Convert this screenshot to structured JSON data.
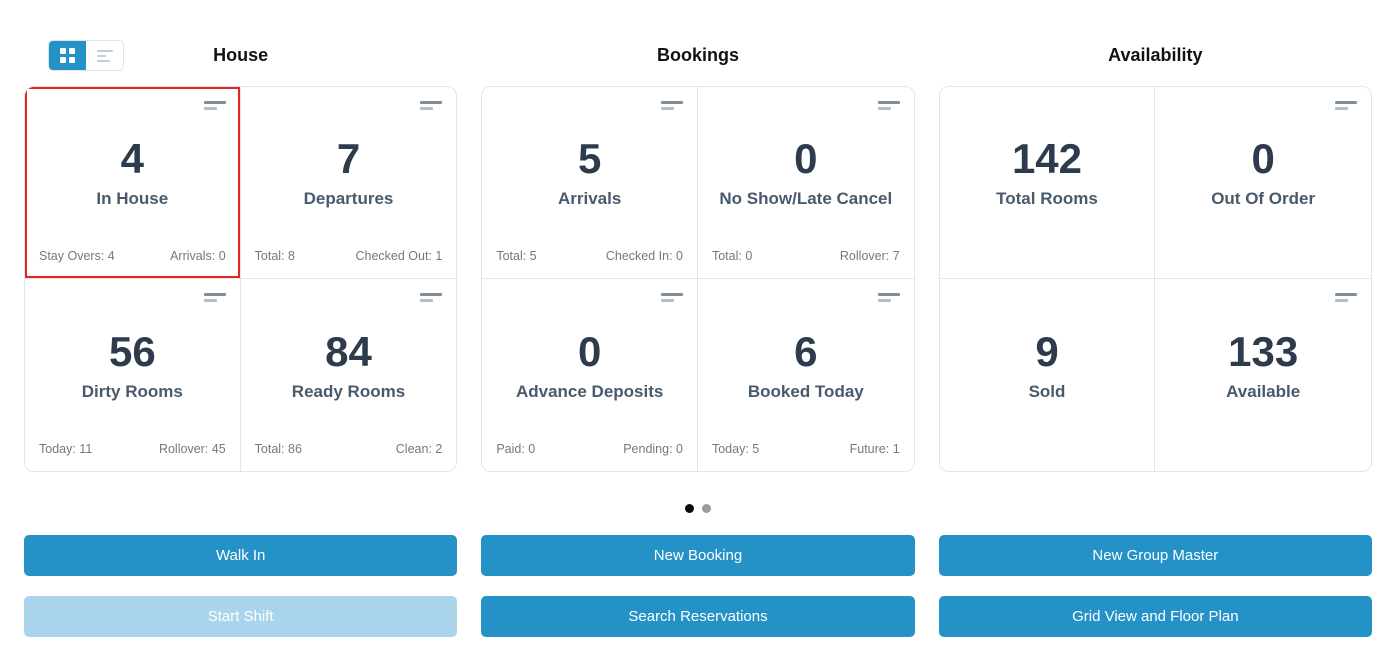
{
  "colors": {
    "accent": "#2492c7",
    "accent_disabled": "#a9d4ec",
    "highlight_border": "#e52421"
  },
  "view_toggle": {
    "buttons": [
      {
        "name": "grid-view",
        "active": true
      },
      {
        "name": "list-view",
        "active": false
      }
    ]
  },
  "sections": [
    {
      "title": "House",
      "cards": [
        {
          "value": "4",
          "label": "In House",
          "stat_left": "Stay Overs: 4",
          "stat_right": "Arrivals: 0",
          "icon": true,
          "highlighted": true
        },
        {
          "value": "7",
          "label": "Departures",
          "stat_left": "Total: 8",
          "stat_right": "Checked Out: 1",
          "icon": true,
          "highlighted": false
        },
        {
          "value": "56",
          "label": "Dirty Rooms",
          "stat_left": "Today: 11",
          "stat_right": "Rollover: 45",
          "icon": true,
          "highlighted": false
        },
        {
          "value": "84",
          "label": "Ready Rooms",
          "stat_left": "Total: 86",
          "stat_right": "Clean: 2",
          "icon": true,
          "highlighted": false
        }
      ],
      "buttons": [
        {
          "label": "Walk In",
          "disabled": false
        },
        {
          "label": "Start Shift",
          "disabled": true
        }
      ]
    },
    {
      "title": "Bookings",
      "cards": [
        {
          "value": "5",
          "label": "Arrivals",
          "stat_left": "Total: 5",
          "stat_right": "Checked In: 0",
          "icon": true,
          "highlighted": false
        },
        {
          "value": "0",
          "label": "No Show/Late Cancel",
          "stat_left": "Total: 0",
          "stat_right": "Rollover: 7",
          "icon": true,
          "highlighted": false
        },
        {
          "value": "0",
          "label": "Advance Deposits",
          "stat_left": "Paid: 0",
          "stat_right": "Pending: 0",
          "icon": true,
          "highlighted": false
        },
        {
          "value": "6",
          "label": "Booked Today",
          "stat_left": "Today: 5",
          "stat_right": "Future: 1",
          "icon": true,
          "highlighted": false
        }
      ],
      "buttons": [
        {
          "label": "New Booking",
          "disabled": false
        },
        {
          "label": "Search Reservations",
          "disabled": false
        }
      ]
    },
    {
      "title": "Availability",
      "cards": [
        {
          "value": "142",
          "label": "Total Rooms",
          "stat_left": "",
          "stat_right": "",
          "icon": false,
          "highlighted": false
        },
        {
          "value": "0",
          "label": "Out Of Order",
          "stat_left": "",
          "stat_right": "",
          "icon": true,
          "highlighted": false
        },
        {
          "value": "9",
          "label": "Sold",
          "stat_left": "",
          "stat_right": "",
          "icon": false,
          "highlighted": false
        },
        {
          "value": "133",
          "label": "Available",
          "stat_left": "",
          "stat_right": "",
          "icon": true,
          "highlighted": false
        }
      ],
      "buttons": [
        {
          "label": "New Group Master",
          "disabled": false
        },
        {
          "label": "Grid View and Floor Plan",
          "disabled": false
        }
      ]
    }
  ],
  "pagination": {
    "total": 2,
    "active_index": 0
  }
}
